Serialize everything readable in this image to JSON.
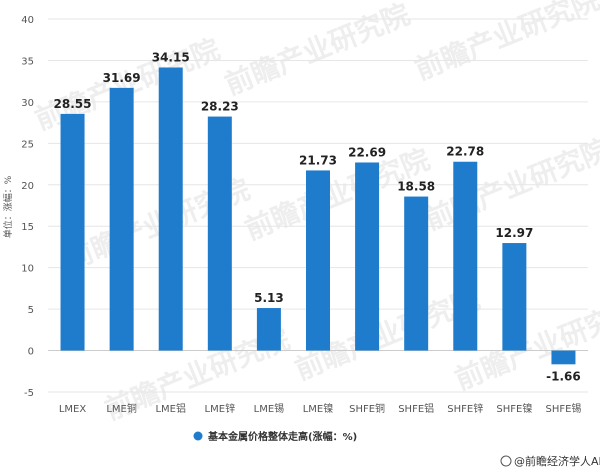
{
  "chart_data": {
    "type": "bar",
    "categories": [
      "LMEX",
      "LME铜",
      "LME铝",
      "LME锌",
      "LME锡",
      "LME镍",
      "SHFE铜",
      "SHFE铝",
      "SHFE锌",
      "SHFE镍",
      "SHFE锡"
    ],
    "series": [
      {
        "name": "基本金属价格整体走高(涨幅：%)",
        "values": [
          28.55,
          31.69,
          34.15,
          28.23,
          5.13,
          21.73,
          22.69,
          18.58,
          22.78,
          12.97,
          -1.66
        ],
        "color": "#1f7ccc"
      }
    ],
    "data_labels": [
      "28.55",
      "31.69",
      "34.15",
      "28.23",
      "5.13",
      "21.73",
      "22.69",
      "18.58",
      "22.78",
      "12.97",
      "-1.66"
    ],
    "ylabel": "单位：涨幅：%",
    "xlabel": "",
    "ylim": [
      -5,
      40
    ],
    "yticks": [
      -5,
      0,
      5,
      10,
      15,
      20,
      25,
      30,
      35,
      40
    ],
    "ytick_labels": [
      "-5",
      "0",
      "5",
      "10",
      "15",
      "20",
      "25",
      "30",
      "35",
      "40"
    ],
    "grid": true,
    "legend_position": "bottom"
  },
  "watermark": {
    "text": "前瞻产业研究院",
    "color": "#cfcfcf"
  },
  "source": {
    "text": "@前瞻经济学人APP"
  }
}
